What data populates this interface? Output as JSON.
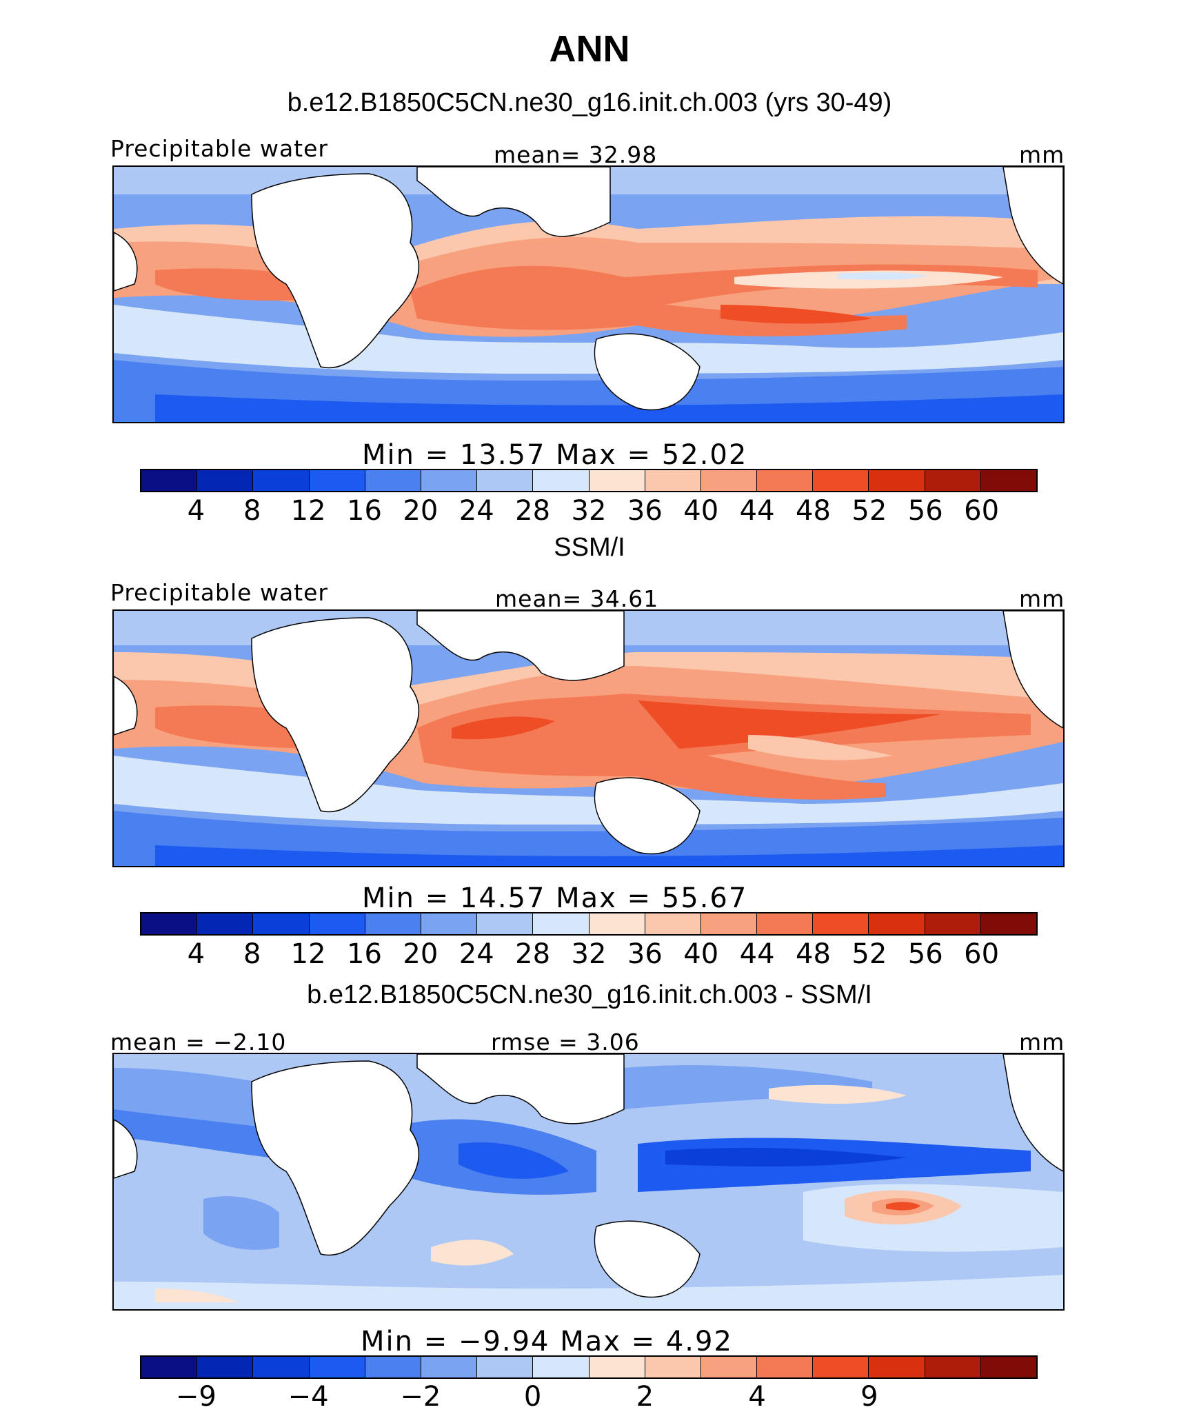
{
  "title": "ANN",
  "colors": [
    "#0b0f86",
    "#0326b5",
    "#0a3fd9",
    "#1d5bf0",
    "#4b80f0",
    "#7aa3f2",
    "#aec8f5",
    "#d6e6fb",
    "#fde3d2",
    "#fbc7ad",
    "#f8a17f",
    "#f47a55",
    "#ee4d25",
    "#d9300f",
    "#ad1d09",
    "#810c05"
  ],
  "panels": [
    {
      "title": "b.e12.B1850C5CN.ne30_g16.init.ch.003 (yrs 30-49)",
      "left_label": "Precipitable water",
      "center_label": "mean=   32.98",
      "right_label": "mm",
      "stats": "Min  =   13.57  Max  =   52.02",
      "ticks": [
        "4",
        "8",
        "12",
        "16",
        "20",
        "24",
        "28",
        "32",
        "36",
        "40",
        "44",
        "48",
        "52",
        "56",
        "60"
      ]
    },
    {
      "title": "SSM/I",
      "left_label": "Precipitable water",
      "center_label": "mean=   34.61",
      "right_label": "mm",
      "stats": "Min  =   14.57  Max  =   55.67",
      "ticks": [
        "4",
        "8",
        "12",
        "16",
        "20",
        "24",
        "28",
        "32",
        "36",
        "40",
        "44",
        "48",
        "52",
        "56",
        "60"
      ]
    },
    {
      "title": "b.e12.B1850C5CN.ne30_g16.init.ch.003 - SSM/I",
      "left_label": "mean  =   −2.10",
      "center_label": "rmse  =    3.06",
      "right_label": "mm",
      "stats": "Min  =   −9.94  Max  =    4.92",
      "ticks": [
        "−9",
        "",
        "−4",
        "",
        "−2",
        "",
        "0",
        "",
        "2",
        "",
        "4",
        "",
        "9",
        "",
        ""
      ]
    }
  ]
}
